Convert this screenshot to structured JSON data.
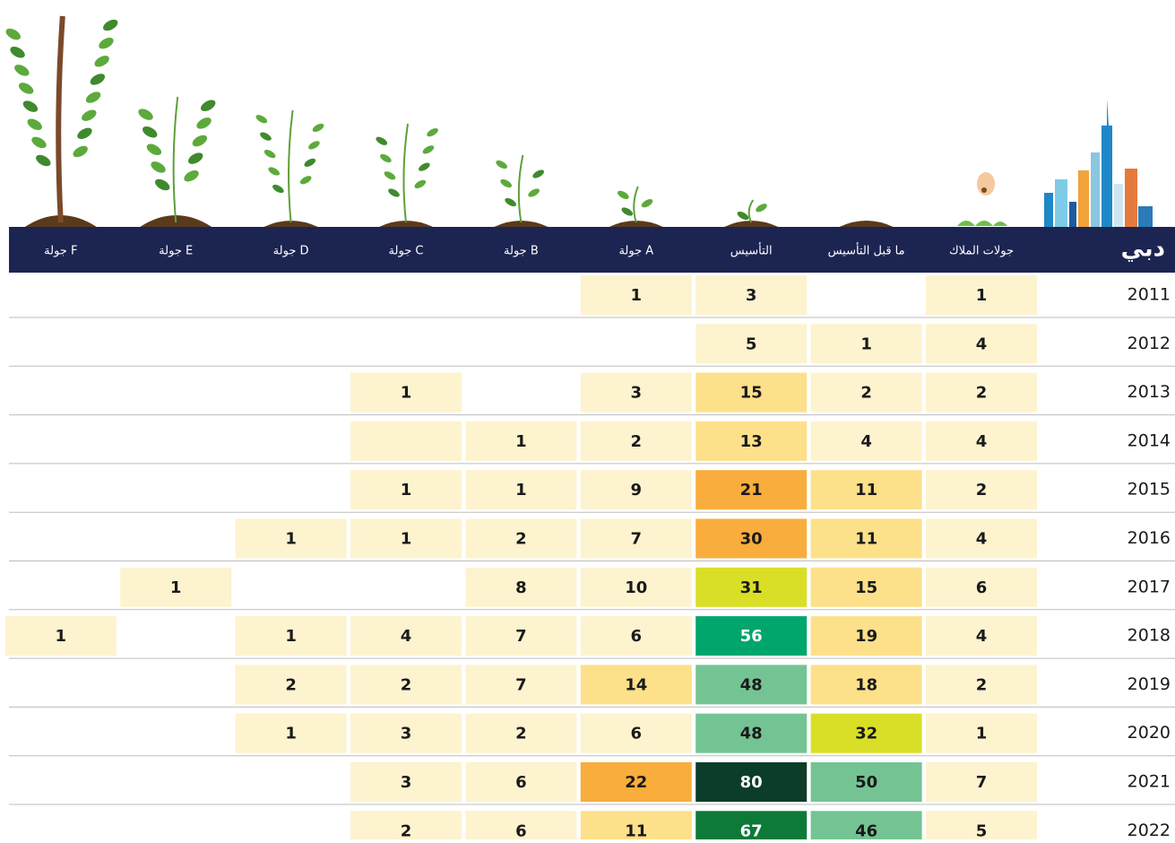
{
  "table": {
    "title": "دبي",
    "columns": [
      "جولات الملاك",
      "ما قبل التأسيس",
      "التأسيس",
      "جولة A",
      "جولة B",
      "جولة C",
      "جولة D",
      "جولة E",
      "جولة F"
    ],
    "rows": [
      {
        "year": "2011",
        "cells": [
          1,
          null,
          3,
          1,
          null,
          null,
          null,
          null,
          null
        ],
        "colors": [
          "#fdf3cf",
          null,
          "#fdf3cf",
          "#fdf3cf",
          null,
          null,
          null,
          null,
          null
        ]
      },
      {
        "year": "2012",
        "cells": [
          4,
          1,
          5,
          null,
          null,
          null,
          null,
          null,
          null
        ],
        "colors": [
          "#fdf3cf",
          "#fdf3cf",
          "#fdf3cf",
          null,
          null,
          null,
          null,
          null,
          null
        ]
      },
      {
        "year": "2013",
        "cells": [
          2,
          2,
          15,
          3,
          null,
          1,
          null,
          null,
          null
        ],
        "colors": [
          "#fdf3cf",
          "#fdf3cf",
          "#fde08a",
          "#fdf3cf",
          null,
          "#fdf3cf",
          null,
          null,
          null
        ]
      },
      {
        "year": "2014",
        "cells": [
          4,
          4,
          13,
          2,
          1,
          null,
          null,
          null,
          null
        ],
        "colors": [
          "#fdf3cf",
          "#fdf3cf",
          "#fde08a",
          "#fdf3cf",
          "#fdf3cf",
          "#fdf3cf",
          null,
          null,
          null
        ]
      },
      {
        "year": "2015",
        "cells": [
          2,
          11,
          21,
          9,
          1,
          1,
          null,
          null,
          null
        ],
        "colors": [
          "#fdf3cf",
          "#fde08a",
          "#f9ad3c",
          "#fdf3cf",
          "#fdf3cf",
          "#fdf3cf",
          null,
          null,
          null
        ]
      },
      {
        "year": "2016",
        "cells": [
          4,
          11,
          30,
          7,
          2,
          1,
          1,
          null,
          null
        ],
        "colors": [
          "#fdf3cf",
          "#fde08a",
          "#f9ad3c",
          "#fdf3cf",
          "#fdf3cf",
          "#fdf3cf",
          "#fdf3cf",
          null,
          null
        ]
      },
      {
        "year": "2017",
        "cells": [
          6,
          15,
          31,
          10,
          8,
          null,
          null,
          1,
          null
        ],
        "colors": [
          "#fdf3cf",
          "#fde08a",
          "#d9df26",
          "#fdf3cf",
          "#fdf3cf",
          null,
          null,
          "#fdf3cf",
          null
        ]
      },
      {
        "year": "2018",
        "cells": [
          4,
          19,
          56,
          6,
          7,
          4,
          1,
          null,
          1
        ],
        "colors": [
          "#fdf3cf",
          "#fde08a",
          "#00a66b",
          "#fdf3cf",
          "#fdf3cf",
          "#fdf3cf",
          "#fdf3cf",
          null,
          "#fdf3cf"
        ]
      },
      {
        "year": "2019",
        "cells": [
          2,
          18,
          48,
          14,
          7,
          2,
          2,
          null,
          null
        ],
        "colors": [
          "#fdf3cf",
          "#fde08a",
          "#74c493",
          "#fde08a",
          "#fdf3cf",
          "#fdf3cf",
          "#fdf3cf",
          null,
          null
        ]
      },
      {
        "year": "2020",
        "cells": [
          1,
          32,
          48,
          6,
          2,
          3,
          1,
          null,
          null
        ],
        "colors": [
          "#fdf3cf",
          "#d9df26",
          "#74c493",
          "#fdf3cf",
          "#fdf3cf",
          "#fdf3cf",
          "#fdf3cf",
          null,
          null
        ]
      },
      {
        "year": "2021",
        "cells": [
          7,
          50,
          80,
          22,
          6,
          3,
          null,
          null,
          null
        ],
        "colors": [
          "#fdf3cf",
          "#74c493",
          "#0b3d2a",
          "#f9ad3c",
          "#fdf3cf",
          "#fdf3cf",
          null,
          null,
          null
        ]
      },
      {
        "year": "2022",
        "cells": [
          5,
          46,
          67,
          11,
          6,
          2,
          null,
          null,
          null
        ],
        "colors": [
          "#fdf3cf",
          "#74c493",
          "#0d7a3a",
          "#fde08a",
          "#fdf3cf",
          "#fdf3cf",
          null,
          null,
          null
        ]
      }
    ]
  }
}
